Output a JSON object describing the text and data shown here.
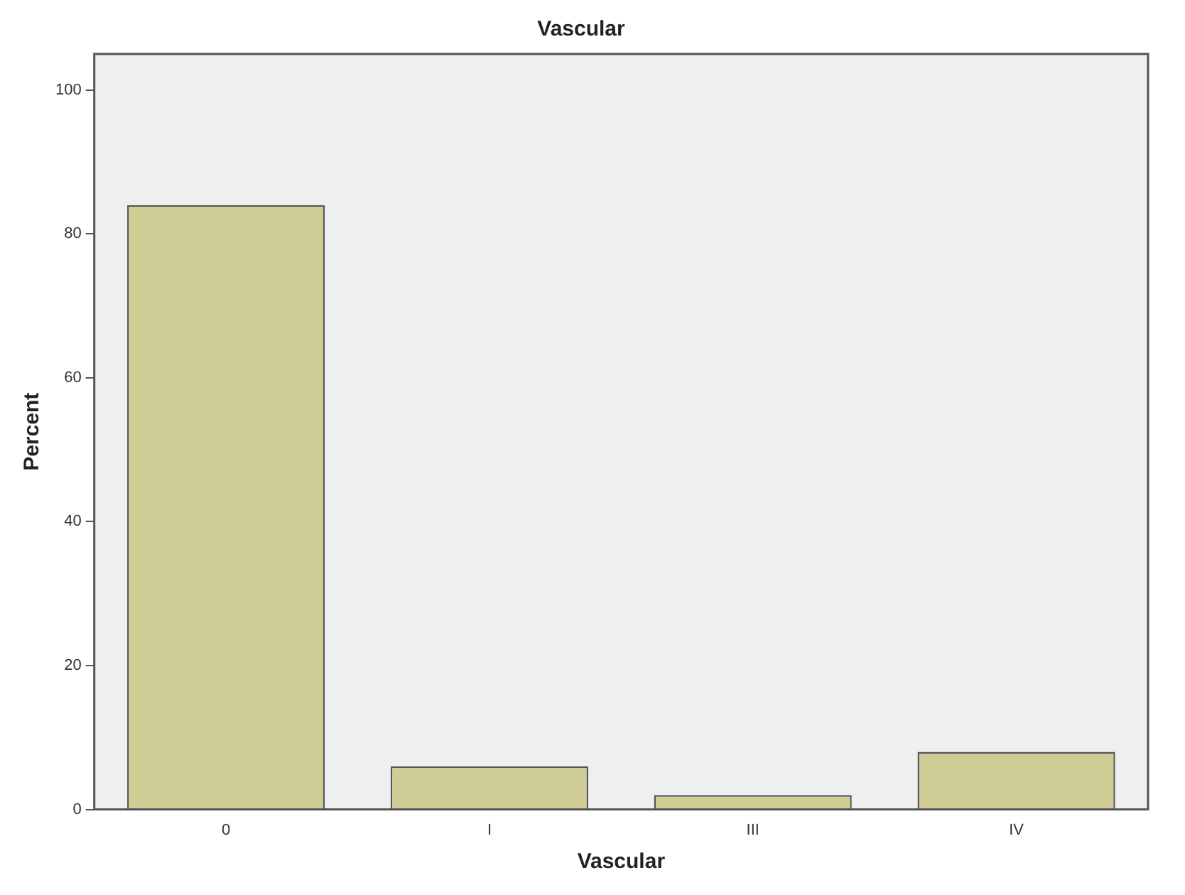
{
  "chart_data": {
    "type": "bar",
    "title": "Vascular",
    "xlabel": "Vascular",
    "ylabel": "Percent",
    "categories": [
      "0",
      "I",
      "III",
      "IV"
    ],
    "values": [
      84,
      6,
      2,
      8
    ],
    "color": "#cfcc96",
    "ylim": [
      0,
      105
    ],
    "yticks": [
      0,
      20,
      40,
      60,
      80,
      100
    ],
    "grid": false,
    "legend": false
  }
}
